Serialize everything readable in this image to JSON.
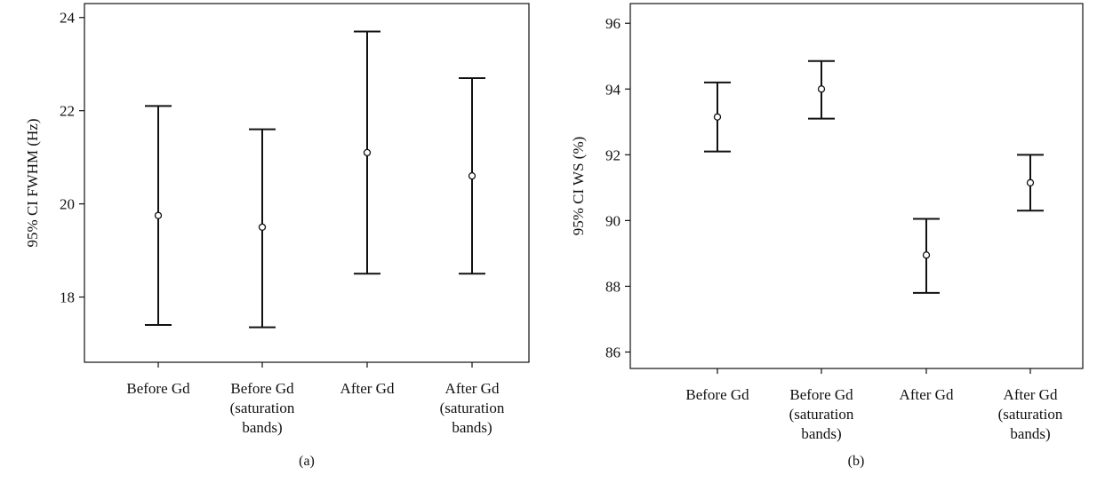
{
  "chart_data": [
    {
      "type": "errorbar",
      "panel_label": "(a)",
      "ylabel": "95% CI FWHM (Hz)",
      "categories": [
        [
          "Before Gd"
        ],
        [
          "Before Gd",
          "(saturation",
          "bands)"
        ],
        [
          "After Gd"
        ],
        [
          "After Gd",
          "(saturation",
          "bands)"
        ]
      ],
      "means": [
        19.75,
        19.5,
        21.1,
        20.6
      ],
      "lower": [
        17.4,
        17.35,
        18.5,
        18.5
      ],
      "upper": [
        22.1,
        21.6,
        23.7,
        22.7
      ],
      "yticks": [
        18,
        20,
        22,
        24
      ],
      "ylim": [
        16.6,
        24.3
      ],
      "grid": false
    },
    {
      "type": "errorbar",
      "panel_label": "(b)",
      "ylabel": "95% CI WS (%)",
      "categories": [
        [
          "Before Gd"
        ],
        [
          "Before Gd",
          "(saturation",
          "bands)"
        ],
        [
          "After Gd"
        ],
        [
          "After Gd",
          "(saturation",
          "bands)"
        ]
      ],
      "means": [
        93.15,
        94.0,
        88.95,
        91.15
      ],
      "lower": [
        92.1,
        93.1,
        87.8,
        90.3
      ],
      "upper": [
        94.2,
        94.85,
        90.05,
        92.0
      ],
      "yticks": [
        86,
        88,
        90,
        92,
        94,
        96
      ],
      "ylim": [
        85.5,
        96.6
      ],
      "grid": false
    }
  ]
}
